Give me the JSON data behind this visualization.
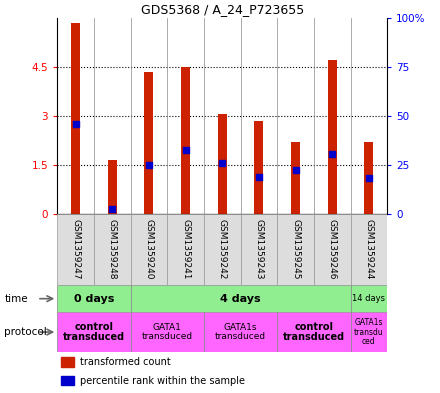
{
  "title": "GDS5368 / A_24_P723655",
  "samples": [
    "GSM1359247",
    "GSM1359248",
    "GSM1359240",
    "GSM1359241",
    "GSM1359242",
    "GSM1359243",
    "GSM1359245",
    "GSM1359246",
    "GSM1359244"
  ],
  "red_values": [
    5.85,
    1.65,
    4.35,
    4.5,
    3.05,
    2.85,
    2.2,
    4.7,
    2.2
  ],
  "blue_values": [
    2.75,
    0.15,
    1.5,
    1.95,
    1.55,
    1.15,
    1.35,
    1.85,
    1.1
  ],
  "ylim": [
    0,
    6
  ],
  "yticks_left": [
    0,
    1.5,
    3.0,
    4.5
  ],
  "ytick_labels_left": [
    "0",
    "1.5",
    "3",
    "4.5"
  ],
  "yticks_right": [
    0,
    1.5,
    3.0,
    4.5,
    6.0
  ],
  "ytick_labels_right": [
    "0",
    "25",
    "50",
    "75",
    "100%"
  ],
  "bar_color": "#CC2200",
  "dot_color": "#0000CC",
  "bar_width": 0.25,
  "dot_size": 18,
  "time_groups": [
    {
      "label": "0 days",
      "start": 0,
      "end": 2,
      "color": "#90EE90",
      "bold": true,
      "fontsize": 8
    },
    {
      "label": "4 days",
      "start": 2,
      "end": 8,
      "color": "#90EE90",
      "bold": true,
      "fontsize": 8
    },
    {
      "label": "14 days",
      "start": 8,
      "end": 9,
      "color": "#90EE90",
      "bold": false,
      "fontsize": 6
    }
  ],
  "proto_groups": [
    {
      "label": "control\ntransduced",
      "start": 0,
      "end": 2,
      "bold": true,
      "fontsize": 7
    },
    {
      "label": "GATA1\ntransduced",
      "start": 2,
      "end": 4,
      "bold": false,
      "fontsize": 6.5
    },
    {
      "label": "GATA1s\ntransduced",
      "start": 4,
      "end": 6,
      "bold": false,
      "fontsize": 6.5
    },
    {
      "label": "control\ntransduced",
      "start": 6,
      "end": 8,
      "bold": true,
      "fontsize": 7
    },
    {
      "label": "GATA1s\ntransdu\nced",
      "start": 8,
      "end": 9,
      "bold": false,
      "fontsize": 5.5
    }
  ],
  "proto_color": "#FF66FF",
  "sample_bg": "#DDDDDD"
}
